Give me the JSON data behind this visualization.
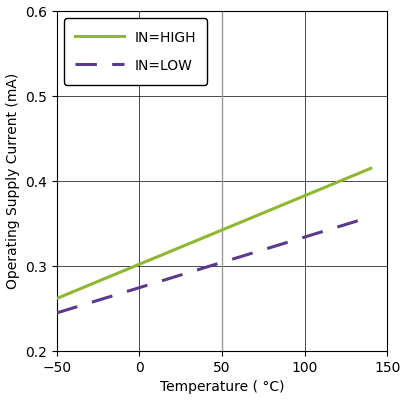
{
  "title": "",
  "xlabel": "Temperature ( °C)",
  "ylabel": "Operating Supply Current (mA)",
  "xlim": [
    -50,
    150
  ],
  "ylim": [
    0.2,
    0.6
  ],
  "xticks": [
    -50,
    0,
    50,
    100,
    150
  ],
  "yticks": [
    0.2,
    0.3,
    0.4,
    0.5,
    0.6
  ],
  "in_high": {
    "x": [
      -50,
      140
    ],
    "y": [
      0.262,
      0.415
    ],
    "color": "#8db830",
    "linewidth": 2.2,
    "label": "IN=HIGH"
  },
  "in_low": {
    "x": [
      -50,
      140
    ],
    "y": [
      0.245,
      0.358
    ],
    "color": "#5b3a8c",
    "linewidth": 2.2,
    "label": "IN=LOW"
  },
  "vline_x": 50,
  "vline_color": "#999999",
  "grid_color": "#000000",
  "grid_alpha": 1.0,
  "grid_linewidth": 0.5,
  "legend_fontsize": 10,
  "axis_fontsize": 10,
  "tick_fontsize": 10,
  "figsize": [
    4.06,
    4.0
  ],
  "dpi": 100,
  "bg_color": "#ffffff",
  "spine_color": "#000000"
}
